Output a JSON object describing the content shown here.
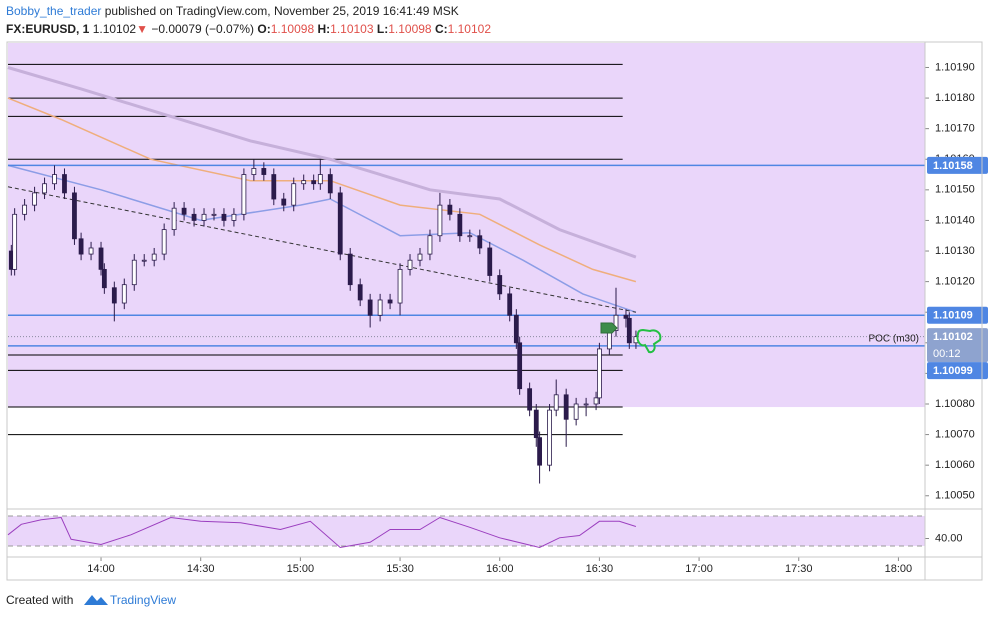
{
  "header": {
    "author": "Bobby_the_trader",
    "published": "published on TradingView.com, November 25, 2019 16:41:49 MSK"
  },
  "legend": {
    "symbol": "FX:EURUSD, 1",
    "last": "1.10102",
    "arrow": "▼",
    "change": "−0.00079 (−0.07%)",
    "o_label": "O:",
    "o": "1.10098",
    "h_label": "H:",
    "h": "1.10103",
    "l_label": "L:",
    "l": "1.10098",
    "c_label": "C:",
    "c": "1.10102"
  },
  "chart_data": [
    {
      "type": "candlestick",
      "up_color": "#ffffff",
      "down_color": "#2b1b4b",
      "outline_color": "#2b1b4b",
      "x": [
        813,
        814,
        817,
        820,
        823,
        826,
        829,
        832,
        834,
        837,
        840,
        841,
        844,
        847,
        850,
        853,
        856,
        859,
        862,
        865,
        868,
        871,
        874,
        877,
        880,
        883,
        886,
        889,
        892,
        895,
        898,
        901,
        904,
        906,
        909,
        912,
        915,
        918,
        921,
        924,
        927,
        930,
        933,
        936,
        939,
        942,
        945,
        948,
        951,
        954,
        957,
        960,
        963,
        965,
        966,
        969,
        971,
        972,
        975,
        977,
        980,
        983,
        986,
        989,
        990,
        993,
        995,
        998,
        999,
        1001
      ],
      "ohlc": [
        [
          1.1013,
          1.10132,
          1.10122,
          1.10124
        ],
        [
          1.10124,
          1.10144,
          1.10122,
          1.10142
        ],
        [
          1.10142,
          1.10147,
          1.1014,
          1.10145
        ],
        [
          1.10145,
          1.10151,
          1.10143,
          1.10149
        ],
        [
          1.10149,
          1.10154,
          1.10147,
          1.10152
        ],
        [
          1.10152,
          1.10158,
          1.1015,
          1.10155
        ],
        [
          1.10155,
          1.10157,
          1.10147,
          1.10149
        ],
        [
          1.10149,
          1.10151,
          1.10132,
          1.10134
        ],
        [
          1.10134,
          1.10136,
          1.10127,
          1.10129
        ],
        [
          1.10129,
          1.10133,
          1.10127,
          1.10131
        ],
        [
          1.10131,
          1.10133,
          1.10122,
          1.10124
        ],
        [
          1.10124,
          1.10126,
          1.10116,
          1.10118
        ],
        [
          1.10118,
          1.1012,
          1.10107,
          1.10113
        ],
        [
          1.10113,
          1.10121,
          1.10111,
          1.10119
        ],
        [
          1.10119,
          1.10129,
          1.10117,
          1.10127
        ],
        [
          1.10127,
          1.10129,
          1.10125,
          1.10127
        ],
        [
          1.10127,
          1.10131,
          1.10125,
          1.10129
        ],
        [
          1.10129,
          1.10139,
          1.10127,
          1.10137
        ],
        [
          1.10137,
          1.10146,
          1.10135,
          1.10144
        ],
        [
          1.10144,
          1.10146,
          1.1014,
          1.10142
        ],
        [
          1.10142,
          1.10144,
          1.10138,
          1.1014
        ],
        [
          1.1014,
          1.10144,
          1.10138,
          1.10142
        ],
        [
          1.10142,
          1.10144,
          1.1014,
          1.10142
        ],
        [
          1.10142,
          1.10144,
          1.10138,
          1.1014
        ],
        [
          1.1014,
          1.10144,
          1.10138,
          1.10142
        ],
        [
          1.10142,
          1.10157,
          1.1014,
          1.10155
        ],
        [
          1.10155,
          1.1016,
          1.10153,
          1.10157
        ],
        [
          1.10157,
          1.10159,
          1.10153,
          1.10155
        ],
        [
          1.10155,
          1.10157,
          1.10145,
          1.10147
        ],
        [
          1.10147,
          1.10149,
          1.10143,
          1.10145
        ],
        [
          1.10145,
          1.10154,
          1.10143,
          1.10152
        ],
        [
          1.10152,
          1.10155,
          1.1015,
          1.10153
        ],
        [
          1.10153,
          1.10155,
          1.1015,
          1.10152
        ],
        [
          1.10152,
          1.1016,
          1.1015,
          1.10155
        ],
        [
          1.10155,
          1.10157,
          1.10147,
          1.10149
        ],
        [
          1.10149,
          1.10151,
          1.10127,
          1.10129
        ],
        [
          1.10129,
          1.10131,
          1.10117,
          1.10119
        ],
        [
          1.10119,
          1.10121,
          1.10112,
          1.10114
        ],
        [
          1.10114,
          1.10116,
          1.10105,
          1.10109
        ],
        [
          1.10109,
          1.10116,
          1.10107,
          1.10114
        ],
        [
          1.10114,
          1.10116,
          1.10111,
          1.10113
        ],
        [
          1.10113,
          1.10126,
          1.10109,
          1.10124
        ],
        [
          1.10124,
          1.10129,
          1.10122,
          1.10127
        ],
        [
          1.10127,
          1.10131,
          1.10125,
          1.10129
        ],
        [
          1.10129,
          1.10137,
          1.10127,
          1.10135
        ],
        [
          1.10135,
          1.10149,
          1.10133,
          1.10145
        ],
        [
          1.10145,
          1.10147,
          1.1014,
          1.10142
        ],
        [
          1.10142,
          1.10144,
          1.10133,
          1.10135
        ],
        [
          1.10135,
          1.10137,
          1.10133,
          1.10135
        ],
        [
          1.10135,
          1.10137,
          1.10129,
          1.10131
        ],
        [
          1.10131,
          1.10133,
          1.1012,
          1.10122
        ],
        [
          1.10122,
          1.10124,
          1.10114,
          1.10116
        ],
        [
          1.10116,
          1.10118,
          1.10107,
          1.10109
        ],
        [
          1.10109,
          1.10111,
          1.10098,
          1.101
        ],
        [
          1.101,
          1.10102,
          1.10083,
          1.10085
        ],
        [
          1.10085,
          1.10087,
          1.10076,
          1.10078
        ],
        [
          1.10078,
          1.1008,
          1.10066,
          1.10069
        ],
        [
          1.10069,
          1.10071,
          1.10054,
          1.1006
        ],
        [
          1.1006,
          1.1008,
          1.10058,
          1.10078
        ],
        [
          1.10078,
          1.10088,
          1.10076,
          1.10083
        ],
        [
          1.10083,
          1.10085,
          1.10066,
          1.10075
        ],
        [
          1.10075,
          1.10082,
          1.10073,
          1.1008
        ],
        [
          1.1008,
          1.10082,
          1.10076,
          1.1008
        ],
        [
          1.1008,
          1.10084,
          1.10078,
          1.10082
        ],
        [
          1.10082,
          1.101,
          1.1008,
          1.10098
        ],
        [
          1.10098,
          1.10106,
          1.10096,
          1.10104
        ],
        [
          1.10104,
          1.10118,
          1.10102,
          1.10109
        ],
        [
          1.10109,
          1.10111,
          1.10105,
          1.10108
        ],
        [
          1.10108,
          1.1011,
          1.10098,
          1.101
        ],
        [
          1.101,
          1.10104,
          1.10098,
          1.10102
        ]
      ],
      "lines": [
        {
          "color": "#c6b0da",
          "width": 3,
          "x": [
            812,
            834,
            855,
            885,
            909,
            939,
            960,
            978,
            1001
          ],
          "values": [
            1.1019,
            1.10183,
            1.10176,
            1.10166,
            1.1016,
            1.1015,
            1.10147,
            1.10137,
            1.10128
          ]
        },
        {
          "color": "#efae7c",
          "width": 1.5,
          "x": [
            812,
            828,
            855,
            885,
            909,
            930,
            954,
            972,
            988,
            1001
          ],
          "values": [
            1.1018,
            1.10173,
            1.1016,
            1.10153,
            1.10153,
            1.10145,
            1.10142,
            1.10132,
            1.10124,
            1.1012
          ]
        },
        {
          "color": "#8c9de6",
          "width": 1.5,
          "x": [
            812,
            840,
            870,
            900,
            909,
            930,
            951,
            967,
            985,
            1001
          ],
          "values": [
            1.10158,
            1.1015,
            1.1014,
            1.10145,
            1.10147,
            1.10135,
            1.10136,
            1.10127,
            1.10116,
            1.1011
          ]
        }
      ],
      "trendline": {
        "color": "#333333",
        "x": [
          812,
          1001
        ],
        "values": [
          1.10151,
          1.1011
        ]
      },
      "zone": {
        "color": "#ead6fa",
        "ylim": [
          1.10079,
          1.10198
        ]
      },
      "levels": {
        "color": "#000000",
        "xlim": [
          812,
          997
        ],
        "values": [
          1.10191,
          1.1018,
          1.10174,
          1.1016,
          1.10096,
          1.10091,
          1.10079,
          1.1007
        ]
      },
      "blue_levels": {
        "color": "#4f86e3",
        "values": [
          1.10158,
          1.10109,
          1.10099
        ]
      },
      "poc": {
        "value": 1.10102,
        "label": "POC (m30)",
        "color": "#8a8aa0"
      },
      "price_tags": [
        {
          "value": 1.10158,
          "label": "1.10158",
          "color": "#4f86e3"
        },
        {
          "value": 1.10109,
          "label": "1.10109",
          "color": "#4f86e3"
        },
        {
          "value": 1.10102,
          "label": "1.10102",
          "color": "#8ea3cf",
          "countdown": "00:12"
        },
        {
          "value": 1.10099,
          "label": "1.10099",
          "color": "#4f86e3"
        }
      ],
      "xlim": [
        812,
        1088
      ],
      "xticks": [
        {
          "value": 840,
          "label": "14:00"
        },
        {
          "value": 870,
          "label": "14:30"
        },
        {
          "value": 900,
          "label": "15:00"
        },
        {
          "value": 930,
          "label": "15:30"
        },
        {
          "value": 960,
          "label": "16:00"
        },
        {
          "value": 990,
          "label": "16:30"
        },
        {
          "value": 1020,
          "label": "17:00"
        },
        {
          "value": 1050,
          "label": "17:30"
        },
        {
          "value": 1080,
          "label": "18:00"
        }
      ],
      "ylim": [
        1.10046,
        1.10198
      ],
      "yticks": [
        {
          "value": 1.1019,
          "label": "1.10190"
        },
        {
          "value": 1.1018,
          "label": "1.10180"
        },
        {
          "value": 1.1017,
          "label": "1.10170"
        },
        {
          "value": 1.1016,
          "label": "1.10160"
        },
        {
          "value": 1.1015,
          "label": "1.10150"
        },
        {
          "value": 1.1014,
          "label": "1.10140"
        },
        {
          "value": 1.1013,
          "label": "1.10130"
        },
        {
          "value": 1.1012,
          "label": "1.10120"
        },
        {
          "value": 1.1011,
          "label": "1.10110"
        },
        {
          "value": 1.101,
          "label": "1.10100"
        },
        {
          "value": 1.1009,
          "label": "1.10090"
        },
        {
          "value": 1.1008,
          "label": "1.10080"
        },
        {
          "value": 1.1007,
          "label": "1.10070"
        },
        {
          "value": 1.1006,
          "label": "1.10060"
        },
        {
          "value": 1.1005,
          "label": "1.10050"
        }
      ]
    },
    {
      "type": "line",
      "color": "#9b3fbf",
      "band_color": "#ead6fa",
      "bands": [
        70,
        30
      ],
      "x": [
        812,
        816,
        822,
        828,
        831,
        840,
        849,
        861,
        870,
        882,
        894,
        903,
        912,
        921,
        927,
        936,
        942,
        951,
        960,
        972,
        978,
        984,
        990,
        996,
        1001
      ],
      "values": [
        45,
        59,
        65,
        68,
        39,
        32,
        45,
        68,
        63,
        61,
        52,
        63,
        28,
        35,
        52,
        52,
        68,
        55,
        41,
        28,
        41,
        44,
        63,
        63,
        56
      ],
      "xlim": [
        812,
        1088
      ],
      "ylim": [
        18,
        78
      ],
      "yticks": [
        {
          "value": 40,
          "label": "40.00"
        }
      ]
    }
  ],
  "footer": {
    "created": "Created with",
    "brand": "TradingView"
  }
}
